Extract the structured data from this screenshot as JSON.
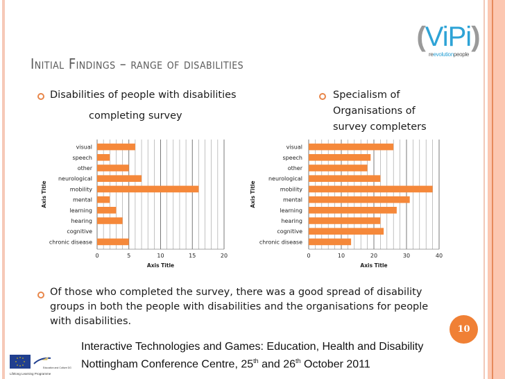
{
  "slide": {
    "title": "Initial Findings – range of disabilities",
    "page_number": "10",
    "accent_color": "#f08035"
  },
  "logo": {
    "name": "ViPi",
    "tagline_prefix": "re",
    "tagline_mid": "evolution",
    "tagline_suffix": "people"
  },
  "bullets": {
    "left_line1": "Disabilities of people with disabilities",
    "left_line2": "completing survey",
    "right_line1": "Specialism of",
    "right_line2": "Organisations of",
    "right_line3": "survey completers",
    "summary_line1": "Of those who completed the survey, there was a good spread of disability",
    "summary_line2": "groups in both the people with disabilities and the organisations for people",
    "summary_line3": "with disabilities."
  },
  "footer": {
    "line1": "Interactive Technologies and Games: Education, Health and Disability",
    "line2_a": "Nottingham Conference Centre, 25",
    "line2_sup1": "th",
    "line2_b": " and 26",
    "line2_sup2": "th",
    "line2_c": " October 2011",
    "eu_programme": "Lifelong Learning Programme",
    "eu_dg": "Education and Culture DG"
  },
  "chart_data": [
    {
      "type": "bar",
      "orientation": "horizontal",
      "title": "Disabilities of people with disabilities completing survey",
      "categories": [
        "visual",
        "speech",
        "other",
        "neurological",
        "mobility",
        "mental",
        "learning",
        "hearing",
        "cognitive",
        "chronic disease"
      ],
      "values": [
        6,
        2,
        5,
        7,
        16,
        2,
        3,
        4,
        0,
        5
      ],
      "xlabel": "Axis Title",
      "ylabel": "Axis Title",
      "xlim": [
        0,
        20
      ],
      "xticks": [
        0,
        5,
        10,
        15,
        20
      ],
      "minor_step": 1,
      "grid": true,
      "bar_color": "#f5883a"
    },
    {
      "type": "bar",
      "orientation": "horizontal",
      "title": "Specialism of Organisations of survey completers",
      "categories": [
        "visual",
        "speech",
        "other",
        "neurological",
        "mobility",
        "mental",
        "learning",
        "hearing",
        "cognitive",
        "chronic disease"
      ],
      "values": [
        26,
        19,
        18,
        22,
        38,
        31,
        27,
        22,
        23,
        13
      ],
      "xlabel": "Axis Title",
      "ylabel": "Axis Title",
      "xlim": [
        0,
        40
      ],
      "xticks": [
        0,
        10,
        20,
        30,
        40
      ],
      "minor_step": 2,
      "grid": true,
      "bar_color": "#f5883a"
    }
  ]
}
